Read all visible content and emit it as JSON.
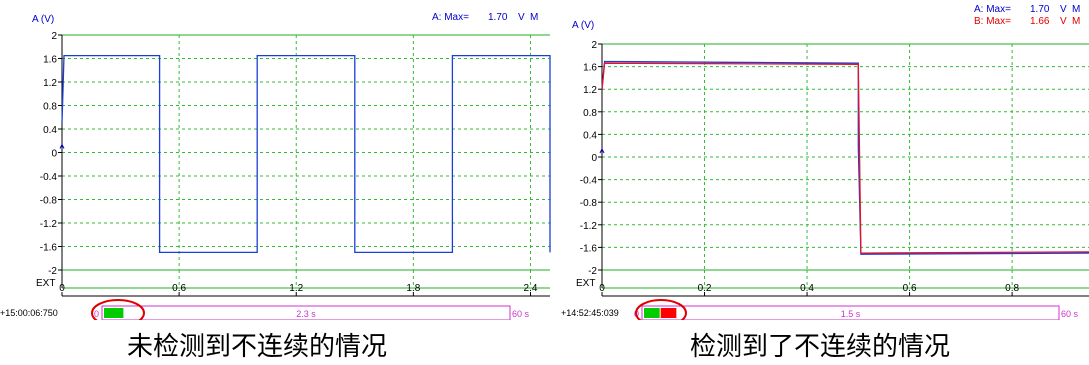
{
  "chart_data": [
    {
      "type": "line",
      "ylabel": "A (V)",
      "xlim": [
        0,
        2.5
      ],
      "ylim": [
        -2,
        2
      ],
      "yticks": [
        "2",
        "1.6",
        "1.2",
        "0.8",
        "0.4",
        "0",
        "-0.4",
        "-0.8",
        "-1.2",
        "-1.6",
        "-2"
      ],
      "ext_label": "EXT",
      "xticks": [
        "0",
        "0.6",
        "1.2",
        "1.8",
        "2.4"
      ],
      "xtick_values": [
        0,
        0.6,
        1.2,
        1.8,
        2.4
      ],
      "grid": true,
      "header": [
        {
          "label": "A: Max=",
          "value": "1.70",
          "unit": "V",
          "suffix": "M",
          "color": "#0000cc"
        }
      ],
      "series": [
        {
          "color": "#1a3fd6",
          "x": [
            0,
            0.01,
            0.5,
            0.5,
            1.0,
            1.0,
            1.5,
            1.5,
            2.0,
            2.0,
            2.5,
            2.5
          ],
          "y": [
            0.5,
            1.65,
            1.65,
            -1.7,
            -1.7,
            1.65,
            1.65,
            -1.7,
            -1.7,
            1.65,
            1.65,
            -1.7
          ]
        }
      ],
      "timestamp": "+15:00:06:750",
      "scroll": {
        "start": "0",
        "middle": "2.3 s",
        "end": "60 s",
        "fill_fraction": 0.05,
        "bar_colors": [
          "#00cc00"
        ]
      },
      "caption": "未检测到不连续的情况"
    },
    {
      "type": "line",
      "ylabel": "A (V)",
      "xlim": [
        0,
        0.95
      ],
      "ylim": [
        -2,
        2
      ],
      "yticks": [
        "2",
        "1.6",
        "1.2",
        "0.8",
        "0.4",
        "0",
        "-0.4",
        "-0.8",
        "-1.2",
        "-1.6",
        "-2"
      ],
      "ext_label": "EXT",
      "xticks": [
        "0",
        "0.2",
        "0.4",
        "0.6",
        "0.8"
      ],
      "xtick_values": [
        0,
        0.2,
        0.4,
        0.6,
        0.8
      ],
      "grid": true,
      "header": [
        {
          "label": "A: Max=",
          "value": "1.70",
          "unit": "V",
          "suffix": "M",
          "color": "#0000cc"
        },
        {
          "label": "B: Max=",
          "value": "1.66",
          "unit": "V",
          "suffix": "M",
          "color": "#e00000"
        }
      ],
      "series": [
        {
          "color": "#1a3fd6",
          "x": [
            0,
            0.005,
            0.5,
            0.5,
            0.505,
            0.95
          ],
          "y": [
            1.2,
            1.69,
            1.66,
            0.2,
            -1.72,
            -1.7
          ]
        },
        {
          "color": "#e8102a",
          "x": [
            0,
            0.005,
            0.5,
            0.505,
            0.95
          ],
          "y": [
            1.2,
            1.66,
            1.64,
            -1.7,
            -1.68
          ]
        }
      ],
      "timestamp": "+14:52:45:039",
      "scroll": {
        "start": "0",
        "middle": "1.5 s",
        "end": "60 s",
        "fill_fraction": 0.08,
        "bar_colors": [
          "#00cc00",
          "#ff0000"
        ]
      },
      "caption": "检测到了不连续的情况"
    }
  ]
}
